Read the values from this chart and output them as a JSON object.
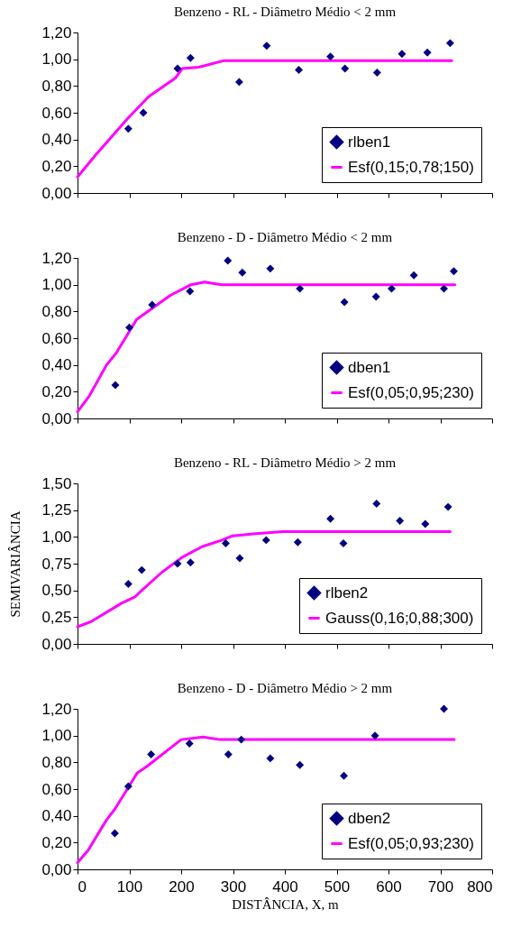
{
  "chart_data": [
    {
      "type": "scatter",
      "title": "Benzeno - RL - Diâmetro Médio < 2 mm",
      "legend": "bottom right",
      "grid": false,
      "tick_labels": "y",
      "xlim": [
        0,
        800
      ],
      "xticks": [
        {
          "value": 0,
          "label": null
        },
        {
          "value": 100,
          "label": null
        },
        {
          "value": 200,
          "label": null
        },
        {
          "value": 300,
          "label": null
        },
        {
          "value": 400,
          "label": null
        },
        {
          "value": 500,
          "label": null
        },
        {
          "value": 600,
          "label": null
        },
        {
          "value": 700,
          "label": null
        },
        {
          "value": 800,
          "label": null
        }
      ],
      "ylim": [
        0,
        1.2
      ],
      "yticks": [
        {
          "value": 0,
          "label": "0,00"
        },
        {
          "value": 0.2,
          "label": "0,20"
        },
        {
          "value": 0.4,
          "label": "0,40"
        },
        {
          "value": 0.6,
          "label": "0,60"
        },
        {
          "value": 0.8,
          "label": "0,80"
        },
        {
          "value": 1,
          "label": "1,00"
        },
        {
          "value": 1.2,
          "label": "1,20"
        }
      ],
      "series": [
        {
          "name": "rlben1",
          "marker": "diamond",
          "color": "#000080",
          "x": [
            98,
            127,
            193,
            218,
            312,
            365,
            427,
            488,
            516,
            578,
            626,
            675,
            719
          ],
          "values": [
            0.48,
            0.6,
            0.93,
            1.01,
            0.83,
            1.1,
            0.92,
            1.02,
            0.93,
            0.9,
            1.04,
            1.05,
            1.12
          ]
        },
        {
          "name": "Esf(0,15;0,78;150)",
          "type": "line",
          "color": "#ff00ff",
          "x": [
            0,
            34,
            95,
            137,
            189,
            202,
            234,
            283,
            722
          ],
          "values": [
            0.12,
            0.28,
            0.55,
            0.72,
            0.86,
            0.93,
            0.94,
            0.99,
            0.99
          ]
        }
      ]
    },
    {
      "type": "scatter",
      "title": "Benzeno - D - Diâmetro Médio < 2 mm",
      "legend": "bottom right",
      "grid": false,
      "tick_labels": "y",
      "xlim": [
        0,
        800
      ],
      "xticks": [
        {
          "value": 0,
          "label": null
        },
        {
          "value": 100,
          "label": null
        },
        {
          "value": 200,
          "label": null
        },
        {
          "value": 300,
          "label": null
        },
        {
          "value": 400,
          "label": null
        },
        {
          "value": 500,
          "label": null
        },
        {
          "value": 600,
          "label": null
        },
        {
          "value": 700,
          "label": null
        },
        {
          "value": 800,
          "label": null
        }
      ],
      "ylim": [
        0,
        1.2
      ],
      "yticks": [
        {
          "value": 0,
          "label": "0,00"
        },
        {
          "value": 0.2,
          "label": "0,20"
        },
        {
          "value": 0.4,
          "label": "0,40"
        },
        {
          "value": 0.6,
          "label": "0,60"
        },
        {
          "value": 0.8,
          "label": "0,80"
        },
        {
          "value": 1,
          "label": "1,00"
        },
        {
          "value": 1.2,
          "label": "1,20"
        }
      ],
      "series": [
        {
          "name": "dben1",
          "marker": "diamond",
          "color": "#000080",
          "x": [
            73,
            100,
            144,
            217,
            290,
            318,
            372,
            429,
            515,
            576,
            606,
            649,
            707,
            726
          ],
          "values": [
            0.25,
            0.68,
            0.85,
            0.95,
            1.18,
            1.09,
            1.12,
            0.97,
            0.87,
            0.91,
            0.97,
            1.07,
            0.97,
            1.1
          ]
        },
        {
          "name": "Esf(0,05;0,95;230)",
          "type": "line",
          "color": "#ff00ff",
          "x": [
            0,
            23,
            56,
            75,
            114,
            179,
            219,
            245,
            278,
            728
          ],
          "values": [
            0.05,
            0.17,
            0.4,
            0.49,
            0.74,
            0.92,
            1,
            1.02,
            1,
            1
          ]
        }
      ]
    },
    {
      "type": "scatter",
      "title": "Benzeno - RL - Diâmetro Médio > 2 mm",
      "ylabel": "SEMIVARIÂNCIA",
      "legend": "bottom right",
      "grid": false,
      "tick_labels": "y",
      "xlim": [
        0,
        800
      ],
      "xticks": [
        {
          "value": 0,
          "label": null
        },
        {
          "value": 100,
          "label": null
        },
        {
          "value": 200,
          "label": null
        },
        {
          "value": 300,
          "label": null
        },
        {
          "value": 400,
          "label": null
        },
        {
          "value": 500,
          "label": null
        },
        {
          "value": 600,
          "label": null
        },
        {
          "value": 700,
          "label": null
        },
        {
          "value": 800,
          "label": null
        }
      ],
      "ylim": [
        0,
        1.5
      ],
      "yticks": [
        {
          "value": 0,
          "label": "0,00"
        },
        {
          "value": 0.25,
          "label": "0,25"
        },
        {
          "value": 0.5,
          "label": "0,50"
        },
        {
          "value": 0.75,
          "label": "0,75"
        },
        {
          "value": 1,
          "label": "1,00"
        },
        {
          "value": 1.25,
          "label": "1,25"
        },
        {
          "value": 1.5,
          "label": "1,50"
        }
      ],
      "series": [
        {
          "name": "rlben2",
          "marker": "diamond",
          "color": "#000080",
          "x": [
            98,
            124,
            193,
            218,
            286,
            313,
            364,
            425,
            488,
            513,
            577,
            622,
            671,
            715
          ],
          "values": [
            0.56,
            0.69,
            0.75,
            0.76,
            0.94,
            0.8,
            0.97,
            0.95,
            1.17,
            0.94,
            1.31,
            1.15,
            1.12,
            1.28
          ]
        },
        {
          "name": "Gauss(0,16;0,88;300)",
          "type": "line",
          "color": "#ff00ff",
          "x": [
            0,
            27,
            85,
            111,
            124,
            163,
            202,
            241,
            279,
            299,
            344,
            396,
            719
          ],
          "values": [
            0.16,
            0.21,
            0.38,
            0.44,
            0.5,
            0.67,
            0.81,
            0.91,
            0.97,
            1.01,
            1.03,
            1.05,
            1.05
          ]
        }
      ]
    },
    {
      "type": "scatter",
      "title": "Benzeno - D - Diâmetro Médio > 2 mm",
      "xlabel": "DISTÂNCIA, X, m",
      "legend": "bottom right",
      "grid": false,
      "xlim": [
        0,
        800
      ],
      "xticks": [
        0,
        100,
        200,
        300,
        400,
        500,
        600,
        700,
        800
      ],
      "ylim": [
        0,
        1.2
      ],
      "yticks": [
        {
          "value": 0,
          "label": "0,00"
        },
        {
          "value": 0.2,
          "label": "0,20"
        },
        {
          "value": 0.4,
          "label": "0,40"
        },
        {
          "value": 0.6,
          "label": "0,60"
        },
        {
          "value": 0.8,
          "label": "0,80"
        },
        {
          "value": 1,
          "label": "1,00"
        },
        {
          "value": 1.2,
          "label": "1,20"
        }
      ],
      "series": [
        {
          "name": "dben2",
          "marker": "diamond",
          "color": "#000080",
          "x": [
            72,
            98,
            142,
            216,
            291,
            316,
            372,
            429,
            514,
            574,
            707
          ],
          "values": [
            0.27,
            0.62,
            0.86,
            0.94,
            0.86,
            0.97,
            0.83,
            0.78,
            0.7,
            1,
            1.2
          ]
        },
        {
          "name": "Esf(0,05;0,93;230)",
          "type": "line",
          "color": "#ff00ff",
          "x": [
            0,
            20,
            56,
            72,
            115,
            134,
            200,
            242,
            275,
            727
          ],
          "values": [
            0.05,
            0.14,
            0.37,
            0.45,
            0.72,
            0.77,
            0.97,
            0.99,
            0.97,
            0.97
          ]
        }
      ]
    }
  ]
}
